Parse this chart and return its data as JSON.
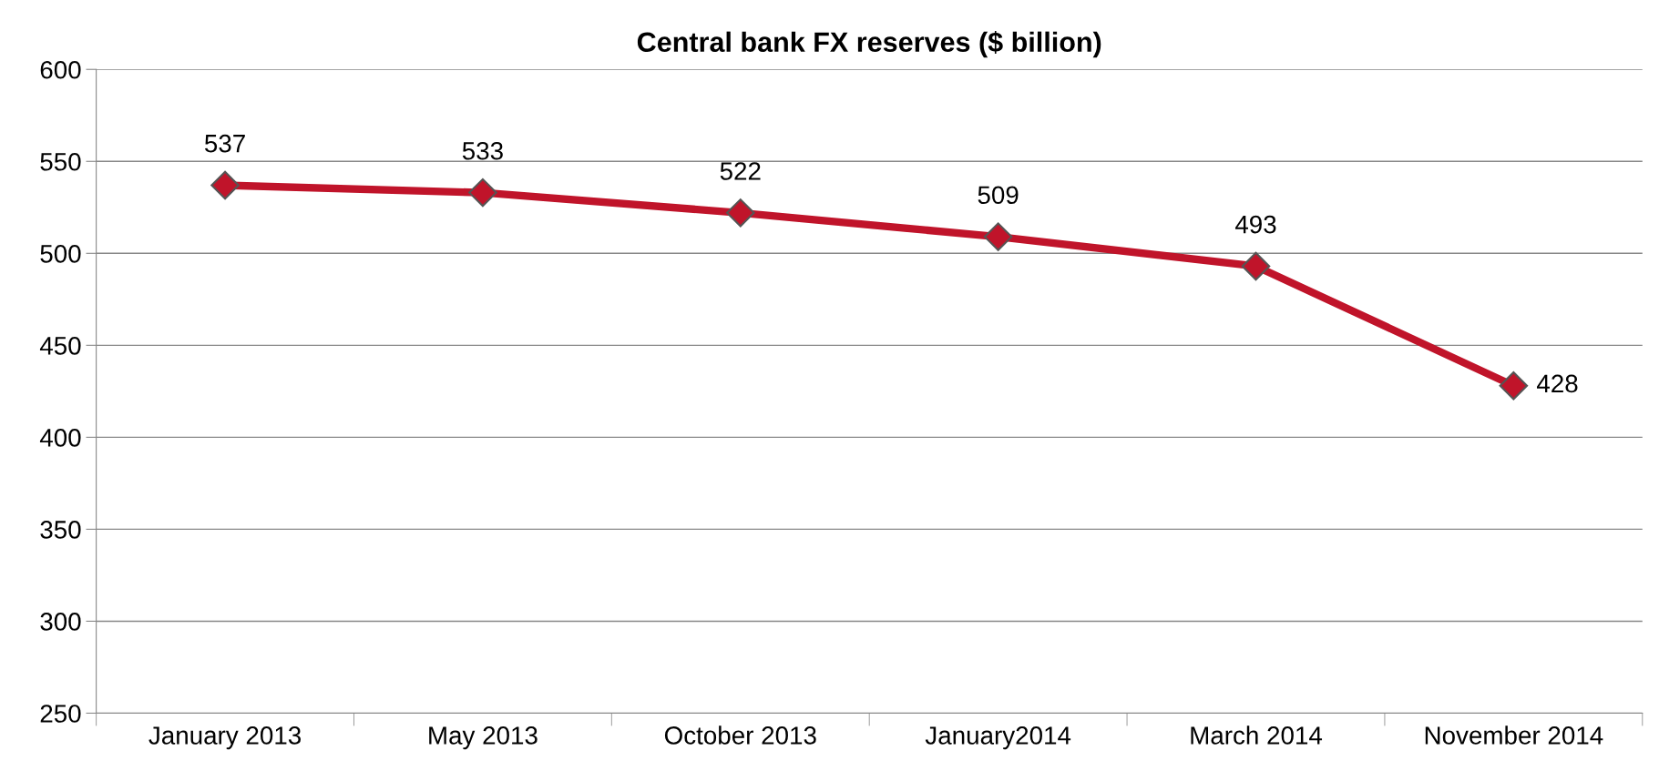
{
  "chart_data": {
    "type": "line",
    "title": "Central bank FX reserves ($ billion)",
    "categories": [
      "January 2013",
      "May 2013",
      "October 2013",
      "January2014",
      "March 2014",
      "November 2014"
    ],
    "series": [
      {
        "color": "#c0142a",
        "values": [
          537,
          533,
          522,
          509,
          493,
          428
        ]
      }
    ],
    "ylim": [
      250,
      600
    ],
    "yticks": [
      250,
      300,
      350,
      400,
      450,
      500,
      550,
      600
    ],
    "grid": "y",
    "marker": "diamond",
    "line_style": "solid",
    "data_labels": true
  }
}
